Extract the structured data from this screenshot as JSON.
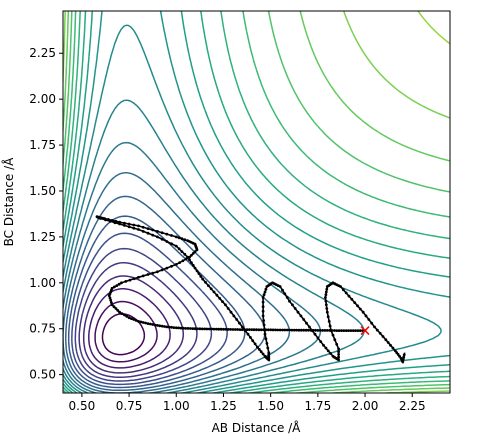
{
  "chart_data": {
    "type": "contour",
    "title": "",
    "xlabel": "AB Distance /Å",
    "ylabel": "BC Distance /Å",
    "xlim": [
      0.4,
      2.45
    ],
    "ylim": [
      0.4,
      2.48
    ],
    "x_ticks": [
      "0.50",
      "0.75",
      "1.00",
      "1.25",
      "1.50",
      "1.75",
      "2.00",
      "2.25"
    ],
    "x_tick_values": [
      0.5,
      0.75,
      1.0,
      1.25,
      1.5,
      1.75,
      2.0,
      2.25
    ],
    "y_ticks": [
      "0.50",
      "0.75",
      "1.00",
      "1.25",
      "1.50",
      "1.75",
      "2.00",
      "2.25"
    ],
    "y_tick_values": [
      0.5,
      0.75,
      1.0,
      1.25,
      1.5,
      1.75,
      2.0,
      2.25
    ],
    "grid": false,
    "colormap": "viridis",
    "contour_levels": 26,
    "trajectory": {
      "color": "#000000",
      "marker": "dot",
      "points": [
        [
          2.0,
          0.74
        ],
        [
          1.95,
          0.74
        ],
        [
          1.9,
          0.74
        ],
        [
          1.85,
          0.74
        ],
        [
          1.8,
          0.741
        ],
        [
          1.75,
          0.741
        ],
        [
          1.7,
          0.742
        ],
        [
          1.65,
          0.742
        ],
        [
          1.6,
          0.743
        ],
        [
          1.55,
          0.743
        ],
        [
          1.5,
          0.744
        ],
        [
          1.45,
          0.744
        ],
        [
          1.4,
          0.745
        ],
        [
          1.35,
          0.745
        ],
        [
          1.3,
          0.746
        ],
        [
          1.25,
          0.747
        ],
        [
          1.2,
          0.748
        ],
        [
          1.15,
          0.749
        ],
        [
          1.1,
          0.75
        ],
        [
          1.05,
          0.752
        ],
        [
          1.0,
          0.755
        ],
        [
          0.95,
          0.76
        ],
        [
          0.9,
          0.768
        ],
        [
          0.85,
          0.778
        ],
        [
          0.8,
          0.79
        ],
        [
          0.75,
          0.81
        ],
        [
          0.7,
          0.84
        ],
        [
          0.66,
          0.88
        ],
        [
          0.645,
          0.93
        ],
        [
          0.66,
          0.97
        ],
        [
          0.71,
          1.0
        ],
        [
          0.8,
          1.03
        ],
        [
          0.9,
          1.06
        ],
        [
          1.0,
          1.1
        ],
        [
          1.07,
          1.14
        ],
        [
          1.11,
          1.18
        ],
        [
          1.1,
          1.21
        ],
        [
          1.06,
          1.23
        ],
        [
          1.0,
          1.25
        ],
        [
          0.9,
          1.28
        ],
        [
          0.8,
          1.31
        ],
        [
          0.7,
          1.33
        ],
        [
          0.62,
          1.35
        ],
        [
          0.58,
          1.36
        ],
        [
          0.6,
          1.35
        ],
        [
          0.7,
          1.32
        ],
        [
          0.8,
          1.29
        ],
        [
          0.9,
          1.25
        ],
        [
          1.0,
          1.2
        ],
        [
          1.06,
          1.14
        ],
        [
          1.1,
          1.08
        ],
        [
          1.14,
          1.02
        ],
        [
          1.2,
          0.95
        ],
        [
          1.26,
          0.88
        ],
        [
          1.32,
          0.8
        ],
        [
          1.38,
          0.72
        ],
        [
          1.43,
          0.65
        ],
        [
          1.47,
          0.6
        ],
        [
          1.49,
          0.58
        ],
        [
          1.49,
          0.62
        ],
        [
          1.47,
          0.72
        ],
        [
          1.46,
          0.82
        ],
        [
          1.46,
          0.92
        ],
        [
          1.48,
          0.98
        ],
        [
          1.51,
          1.0
        ],
        [
          1.55,
          0.98
        ],
        [
          1.6,
          0.9
        ],
        [
          1.66,
          0.82
        ],
        [
          1.72,
          0.74
        ],
        [
          1.78,
          0.66
        ],
        [
          1.83,
          0.6
        ],
        [
          1.86,
          0.58
        ],
        [
          1.86,
          0.64
        ],
        [
          1.82,
          0.74
        ],
        [
          1.8,
          0.84
        ],
        [
          1.79,
          0.92
        ],
        [
          1.8,
          0.98
        ],
        [
          1.83,
          1.0
        ],
        [
          1.87,
          0.98
        ],
        [
          1.93,
          0.91
        ],
        [
          1.99,
          0.84
        ],
        [
          2.05,
          0.76
        ],
        [
          2.11,
          0.69
        ],
        [
          2.16,
          0.63
        ],
        [
          2.19,
          0.59
        ],
        [
          2.2,
          0.57
        ],
        [
          2.21,
          0.62
        ]
      ]
    },
    "start_marker": {
      "x": 2.0,
      "y": 0.74,
      "symbol": "x",
      "color": "#ff0000"
    }
  }
}
